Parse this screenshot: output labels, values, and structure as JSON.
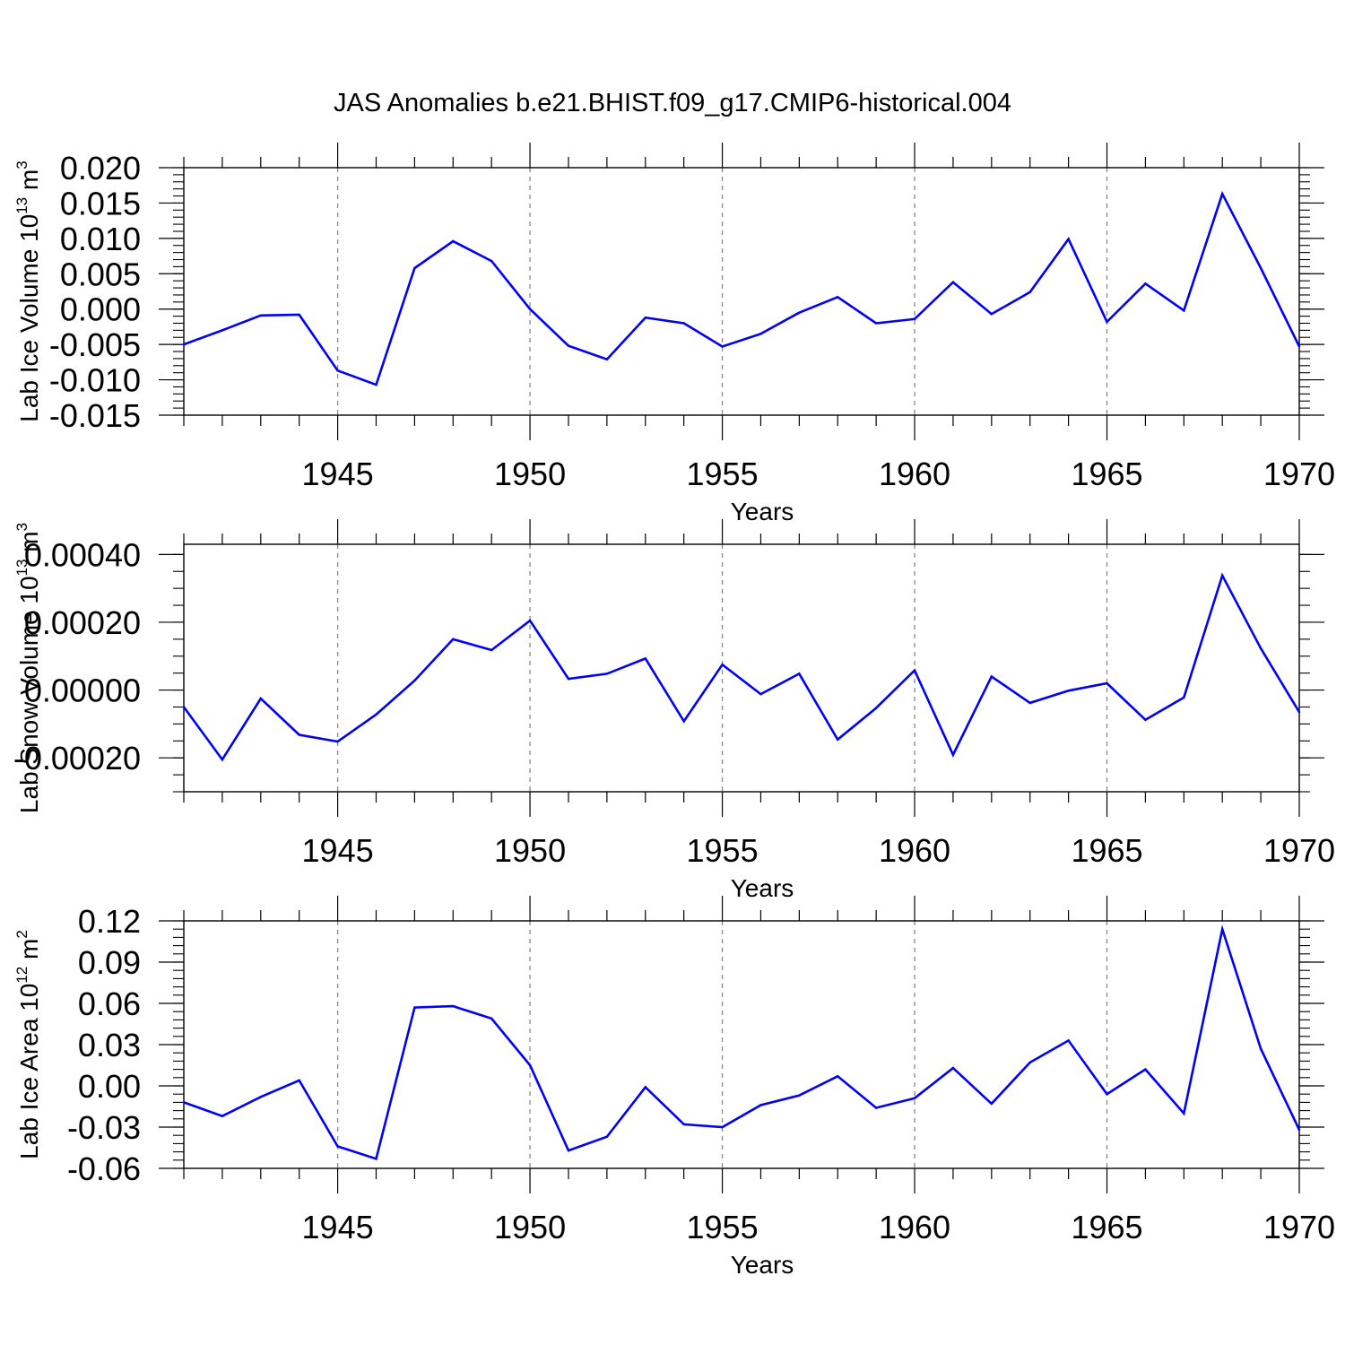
{
  "figure_title": "JAS Anomalies b.e21.BHIST.f09_g17.CMIP6-historical.004",
  "line_color": "#0000ff",
  "chart_data": [
    {
      "type": "line",
      "ylabel": "Lab Ice Volume 10",
      "ylabel_sup": "13",
      "ylabel_unit": " m",
      "ylabel_unit_sup": "3",
      "xlabel": "Years",
      "xlim": [
        1941,
        1970
      ],
      "ylim": [
        -0.015,
        0.02
      ],
      "xticks": [
        1945,
        1950,
        1955,
        1960,
        1965,
        1970
      ],
      "xtick_labels": [
        "1945",
        "1950",
        "1955",
        "1960",
        "1965",
        "1970"
      ],
      "yticks": [
        -0.015,
        -0.01,
        -0.005,
        0.0,
        0.005,
        0.01,
        0.015,
        0.02
      ],
      "ytick_labels": [
        "-0.015",
        "-0.010",
        "-0.005",
        "0.000",
        "0.005",
        "0.010",
        "0.015",
        "0.020"
      ],
      "yminor_step": 0.001,
      "x": [
        1941,
        1942,
        1943,
        1944,
        1945,
        1946,
        1947,
        1948,
        1949,
        1950,
        1951,
        1952,
        1953,
        1954,
        1955,
        1956,
        1957,
        1958,
        1959,
        1960,
        1961,
        1962,
        1963,
        1964,
        1965,
        1966,
        1967,
        1968,
        1969,
        1970
      ],
      "values": [
        -0.005,
        -0.003,
        -0.0009,
        -0.0008,
        -0.0087,
        -0.0107,
        0.0058,
        0.0096,
        0.0068,
        0.0,
        -0.0052,
        -0.0071,
        -0.0012,
        -0.002,
        -0.0053,
        -0.0035,
        -0.0005,
        0.0017,
        -0.002,
        -0.0014,
        0.0038,
        -0.0007,
        0.0024,
        0.0099,
        -0.0018,
        0.0036,
        -0.0002,
        0.0163,
        0.0058,
        -0.0053
      ]
    },
    {
      "type": "line",
      "ylabel": "Lab Snow Volume 10",
      "ylabel_sup": "13",
      "ylabel_unit": " m",
      "ylabel_unit_sup": "3",
      "xlabel": "Years",
      "xlim": [
        1941,
        1970
      ],
      "ylim": [
        -0.0003,
        0.00043
      ],
      "xticks": [
        1945,
        1950,
        1955,
        1960,
        1965,
        1970
      ],
      "xtick_labels": [
        "1945",
        "1950",
        "1955",
        "1960",
        "1965",
        "1970"
      ],
      "yticks": [
        -0.0002,
        0.0,
        0.0002,
        0.0004
      ],
      "ytick_labels": [
        "-0.00020",
        "0.00000",
        "0.00020",
        "0.00040"
      ],
      "yminor_step": 5e-05,
      "x": [
        1941,
        1942,
        1943,
        1944,
        1945,
        1946,
        1947,
        1948,
        1949,
        1950,
        1951,
        1952,
        1953,
        1954,
        1955,
        1956,
        1957,
        1958,
        1959,
        1960,
        1961,
        1962,
        1963,
        1964,
        1965,
        1966,
        1967,
        1968,
        1969,
        1970
      ],
      "values": [
        -5e-05,
        -0.000205,
        -2.5e-05,
        -0.000132,
        -0.000152,
        -7.2e-05,
        2.8e-05,
        0.00015,
        0.000118,
        0.000205,
        3.3e-05,
        4.8e-05,
        9.3e-05,
        -9.2e-05,
        7.5e-05,
        -1.2e-05,
        4.8e-05,
        -0.000146,
        -5.3e-05,
        5.8e-05,
        -0.000191,
        4e-05,
        -3.8e-05,
        -2e-06,
        2e-05,
        -8.8e-05,
        -2.2e-05,
        0.000338,
        0.000123,
        -6.5e-05
      ]
    },
    {
      "type": "line",
      "ylabel": "Lab Ice Area 10",
      "ylabel_sup": "12",
      "ylabel_unit": " m",
      "ylabel_unit_sup": "2",
      "xlabel": "Years",
      "xlim": [
        1941,
        1970
      ],
      "ylim": [
        -0.06,
        0.12
      ],
      "xticks": [
        1945,
        1950,
        1955,
        1960,
        1965,
        1970
      ],
      "xtick_labels": [
        "1945",
        "1950",
        "1955",
        "1960",
        "1965",
        "1970"
      ],
      "yticks": [
        -0.06,
        -0.03,
        0.0,
        0.03,
        0.06,
        0.09,
        0.12
      ],
      "ytick_labels": [
        "-0.06",
        "-0.03",
        "0.00",
        "0.03",
        "0.06",
        "0.09",
        "0.12"
      ],
      "yminor_step": 0.006,
      "x": [
        1941,
        1942,
        1943,
        1944,
        1945,
        1946,
        1947,
        1948,
        1949,
        1950,
        1951,
        1952,
        1953,
        1954,
        1955,
        1956,
        1957,
        1958,
        1959,
        1960,
        1961,
        1962,
        1963,
        1964,
        1965,
        1966,
        1967,
        1968,
        1969,
        1970
      ],
      "values": [
        -0.012,
        -0.022,
        -0.008,
        0.004,
        -0.044,
        -0.053,
        0.057,
        0.058,
        0.049,
        0.015,
        -0.047,
        -0.037,
        -0.001,
        -0.028,
        -0.03,
        -0.014,
        -0.007,
        0.007,
        -0.016,
        -0.009,
        0.013,
        -0.013,
        0.017,
        0.033,
        -0.006,
        0.012,
        -0.02,
        0.114,
        0.027,
        -0.032
      ]
    }
  ]
}
